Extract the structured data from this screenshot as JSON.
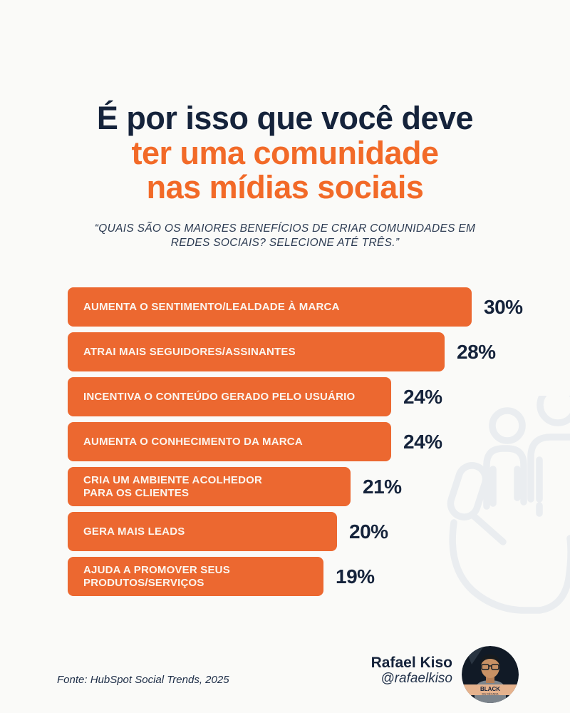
{
  "page": {
    "background": "#FAFAF8"
  },
  "title": {
    "line1": "É por isso que você deve",
    "line2": "ter uma comunidade",
    "line3": "nas mídias sociais",
    "color_primary": "#15233B",
    "color_accent": "#F26A28"
  },
  "subtitle": {
    "text": "“QUAIS SÃO OS MAIORES BENEFÍCIOS DE CRIAR COMUNIDADES EM REDES SOCIAIS? SELECIONE ATÉ TRÊS.”"
  },
  "chart_data": {
    "type": "bar",
    "orientation": "horizontal",
    "categories": [
      "AUMENTA O SENTIMENTO/LEALDADE À MARCA",
      "ATRAI MAIS SEGUIDORES/ASSINANTES",
      "INCENTIVA O CONTEÚDO GERADO PELO USUÁRIO",
      "AUMENTA O CONHECIMENTO DA MARCA",
      "CRIA UM AMBIENTE ACOLHEDOR\nPARA OS CLIENTES",
      "GERA MAIS LEADS",
      "AJUDA A PROMOVER SEUS\nPRODUTOS/SERVIÇOS"
    ],
    "values": [
      30,
      28,
      24,
      24,
      21,
      20,
      19
    ],
    "unit": "%",
    "xlim": [
      0,
      30
    ],
    "bar_color": "#EC6830",
    "label_color": "#FCF5EE",
    "value_color": "#15233B",
    "grid": false,
    "legend": false
  },
  "watermark": {
    "icon": "hand-holding-people-icon",
    "color": "#EAEDF0"
  },
  "footer": {
    "source": "Fonte: HubSpot Social Trends, 2025",
    "author_name": "Rafael Kiso",
    "author_handle": "@rafaelkiso",
    "avatar_badge_line1": "BLACK",
    "avatar_badge_line2": "DA DÉCADA"
  }
}
